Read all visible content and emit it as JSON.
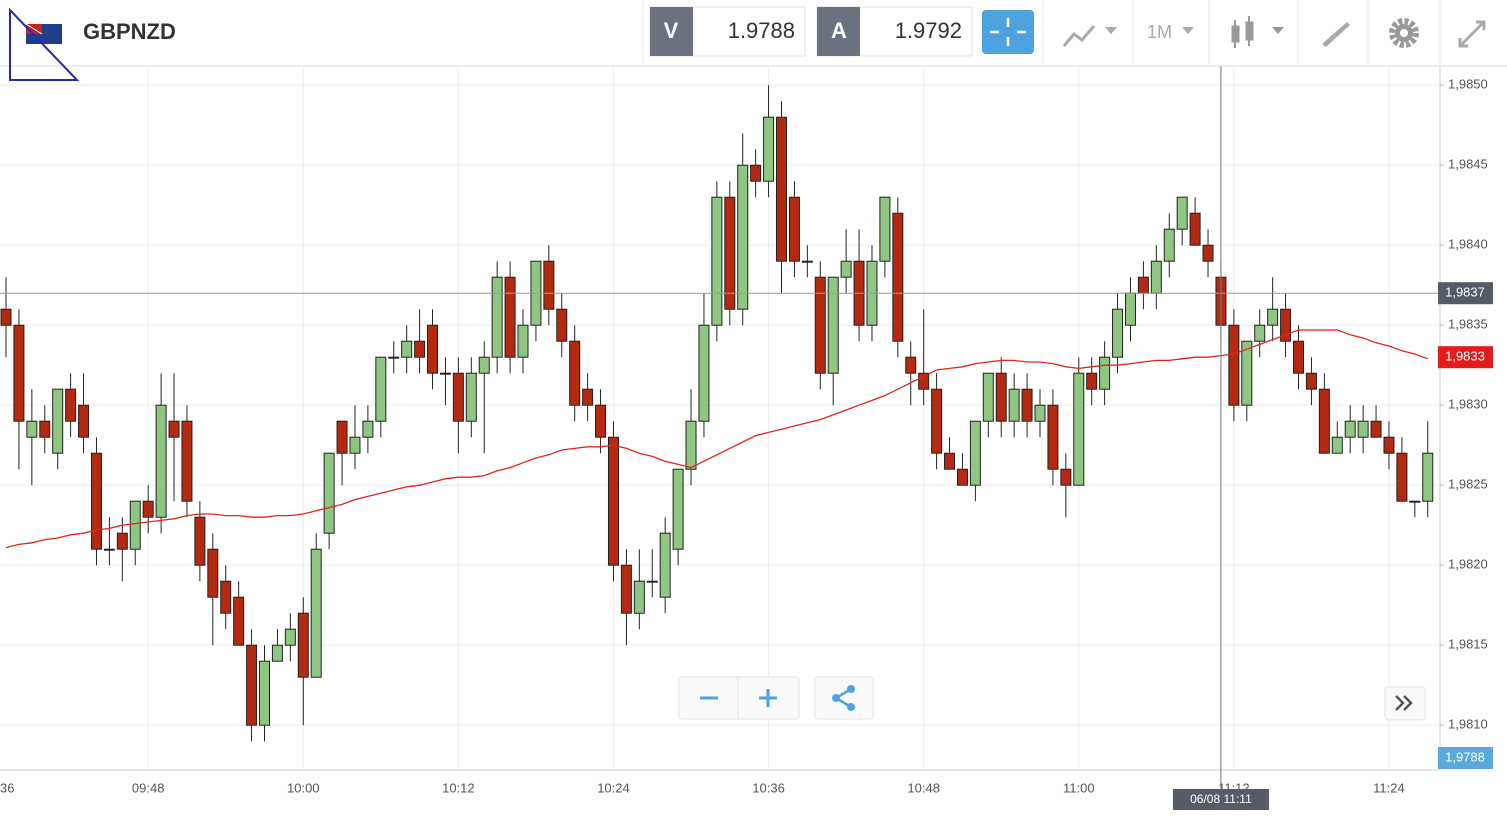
{
  "header": {
    "symbol": "GBPNZD",
    "sell": {
      "letter": "V",
      "price": "1.9788"
    },
    "buy": {
      "letter": "A",
      "price": "1.9792"
    },
    "timeframe": "1M"
  },
  "chart_data": {
    "type": "candlestick",
    "categories": [
      null,
      null,
      null,
      null,
      null,
      null,
      null,
      null,
      null,
      null,
      null,
      "09:48",
      null,
      null,
      null,
      null,
      null,
      null,
      null,
      null,
      null,
      null,
      null,
      "10:00",
      null,
      null,
      null,
      null,
      null,
      null,
      null,
      null,
      null,
      null,
      null,
      "10:12",
      null,
      null,
      null,
      null,
      null,
      null,
      null,
      null,
      null,
      null,
      null,
      "10:24",
      null,
      null,
      null,
      null,
      null,
      null,
      null,
      null,
      null,
      null,
      null,
      "10:36",
      null,
      null,
      null,
      null,
      null,
      null,
      null,
      null,
      null,
      null,
      null,
      "10:48",
      null,
      null,
      null,
      null,
      null,
      null,
      null,
      null,
      null,
      null,
      null,
      "11:00",
      null,
      null,
      null,
      null,
      null,
      null,
      null,
      null,
      null,
      null,
      null,
      "11:12",
      null,
      null,
      null,
      null,
      null,
      null,
      null,
      null,
      null,
      null,
      null,
      "11:24",
      null,
      null,
      null
    ],
    "x_cut_label": "36",
    "open": [
      1.9836,
      1.9835,
      1.9828,
      1.9829,
      1.9827,
      1.9831,
      1.983,
      1.9827,
      1.9821,
      1.9822,
      1.9821,
      1.9824,
      1.9823,
      1.9829,
      1.9829,
      1.9823,
      1.9821,
      1.9819,
      1.9818,
      1.9815,
      1.981,
      1.9814,
      1.9815,
      1.9817,
      1.9813,
      1.9822,
      1.9829,
      1.9827,
      1.9828,
      1.9829,
      1.9833,
      1.9833,
      1.9834,
      1.9835,
      1.9832,
      1.9832,
      1.9829,
      1.9832,
      1.9833,
      1.9838,
      1.9833,
      1.9835,
      1.9839,
      1.9836,
      1.9834,
      1.9831,
      1.983,
      1.9828,
      1.982,
      1.9817,
      1.9819,
      1.9818,
      1.9821,
      1.9826,
      1.9829,
      1.9835,
      1.9843,
      1.9836,
      1.9845,
      1.9844,
      1.9848,
      1.9843,
      1.9839,
      1.9838,
      1.9832,
      1.9838,
      1.9839,
      1.9835,
      1.9839,
      1.9842,
      1.9833,
      1.9832,
      1.9831,
      1.9827,
      1.9826,
      1.9825,
      1.9829,
      1.9832,
      1.9829,
      1.9831,
      1.9829,
      1.983,
      1.9826,
      1.9825,
      1.9832,
      1.9831,
      1.9833,
      1.9835,
      1.9838,
      1.9837,
      1.9839,
      1.9841,
      1.9842,
      1.984,
      1.9838,
      1.9835,
      1.983,
      1.9834,
      1.9835,
      1.9836,
      1.9834,
      1.9832,
      1.9831,
      1.9827,
      1.9828,
      1.9828,
      1.9829,
      1.9828,
      1.9827,
      1.9824,
      1.9824
    ],
    "high": [
      1.9838,
      1.9836,
      1.9831,
      1.983,
      1.9831,
      1.9832,
      1.9832,
      1.9828,
      1.9823,
      1.9823,
      1.9824,
      1.9825,
      1.9832,
      1.9832,
      1.983,
      1.9824,
      1.9822,
      1.982,
      1.9819,
      1.9816,
      1.9815,
      1.9816,
      1.9817,
      1.9818,
      1.9822,
      1.9827,
      1.9829,
      1.983,
      1.983,
      1.9833,
      1.9834,
      1.9835,
      1.9836,
      1.9836,
      1.9833,
      1.9833,
      1.9833,
      1.9834,
      1.9839,
      1.9839,
      1.9836,
      1.9839,
      1.984,
      1.9837,
      1.9835,
      1.9832,
      1.9831,
      1.9829,
      1.9821,
      1.9821,
      1.9821,
      1.9823,
      1.9826,
      1.9831,
      1.9837,
      1.9844,
      1.9844,
      1.9847,
      1.9846,
      1.985,
      1.9849,
      1.9844,
      1.984,
      1.9839,
      1.9838,
      1.9841,
      1.9841,
      1.984,
      1.9843,
      1.9843,
      1.9834,
      1.9836,
      1.9832,
      1.9828,
      1.9827,
      1.9829,
      1.9832,
      1.9833,
      1.9832,
      1.9832,
      1.9831,
      1.9831,
      1.9827,
      1.9833,
      1.9833,
      1.9834,
      1.9837,
      1.9838,
      1.9839,
      1.984,
      1.9842,
      1.9843,
      1.9843,
      1.9841,
      1.9839,
      1.9836,
      1.9834,
      1.9836,
      1.9838,
      1.9837,
      1.9835,
      1.9833,
      1.9832,
      1.9829,
      1.983,
      1.983,
      1.983,
      1.9829,
      1.9828,
      1.9824,
      1.9829
    ],
    "low": [
      1.9833,
      1.9826,
      1.9825,
      1.9827,
      1.9826,
      1.9828,
      1.9827,
      1.982,
      1.982,
      1.9819,
      1.982,
      1.9822,
      1.9822,
      1.9824,
      1.9823,
      1.9819,
      1.9815,
      1.9816,
      1.9815,
      1.9809,
      1.9809,
      1.9814,
      1.9814,
      1.981,
      1.9813,
      1.9821,
      1.9825,
      1.9826,
      1.9827,
      1.9828,
      1.9832,
      1.9832,
      1.9832,
      1.9831,
      1.983,
      1.9827,
      1.9828,
      1.9827,
      1.9832,
      1.9832,
      1.9832,
      1.9834,
      1.9835,
      1.9833,
      1.9829,
      1.9829,
      1.9827,
      1.9819,
      1.9815,
      1.9816,
      1.9818,
      1.9817,
      1.982,
      1.9825,
      1.9828,
      1.9834,
      1.9835,
      1.9835,
      1.9843,
      1.9843,
      1.9837,
      1.9838,
      1.9838,
      1.9831,
      1.983,
      1.9837,
      1.9834,
      1.9834,
      1.9838,
      1.9833,
      1.983,
      1.983,
      1.9826,
      1.9826,
      1.9825,
      1.9824,
      1.9828,
      1.9828,
      1.9828,
      1.9828,
      1.9828,
      1.9825,
      1.9823,
      1.9825,
      1.983,
      1.983,
      1.9832,
      1.9834,
      1.9836,
      1.9836,
      1.9838,
      1.984,
      1.984,
      1.9838,
      1.9834,
      1.9829,
      1.9829,
      1.9833,
      1.9834,
      1.9833,
      1.9831,
      1.983,
      1.9827,
      1.9827,
      1.9827,
      1.9827,
      1.9828,
      1.9826,
      1.9824,
      1.9823,
      1.9823
    ],
    "close": [
      1.9835,
      1.9829,
      1.9829,
      1.9828,
      1.9831,
      1.9829,
      1.9828,
      1.9821,
      1.9821,
      1.9821,
      1.9824,
      1.9823,
      1.983,
      1.9828,
      1.9824,
      1.982,
      1.9818,
      1.9817,
      1.9815,
      1.981,
      1.9814,
      1.9815,
      1.9816,
      1.9813,
      1.9821,
      1.9827,
      1.9827,
      1.9828,
      1.9829,
      1.9833,
      1.9833,
      1.9834,
      1.9833,
      1.9832,
      1.9832,
      1.9829,
      1.9832,
      1.9833,
      1.9838,
      1.9833,
      1.9835,
      1.9839,
      1.9836,
      1.9834,
      1.983,
      1.983,
      1.9828,
      1.982,
      1.9817,
      1.9819,
      1.9819,
      1.9822,
      1.9826,
      1.9829,
      1.9835,
      1.9843,
      1.9836,
      1.9845,
      1.9844,
      1.9848,
      1.9839,
      1.9839,
      1.9839,
      1.9832,
      1.9838,
      1.9839,
      1.9835,
      1.9839,
      1.9843,
      1.9834,
      1.9832,
      1.9831,
      1.9827,
      1.9826,
      1.9825,
      1.9829,
      1.9832,
      1.9829,
      1.9831,
      1.9829,
      1.983,
      1.9826,
      1.9825,
      1.9832,
      1.9831,
      1.9833,
      1.9836,
      1.9837,
      1.9837,
      1.9839,
      1.9841,
      1.9843,
      1.984,
      1.9839,
      1.9835,
      1.983,
      1.9834,
      1.9835,
      1.9836,
      1.9834,
      1.9832,
      1.9831,
      1.9827,
      1.9828,
      1.9829,
      1.9829,
      1.9828,
      1.9827,
      1.9824,
      1.9824,
      1.9827
    ],
    "ma": [
      1.98211,
      1.98213,
      1.98214,
      1.98216,
      1.98217,
      1.98219,
      1.9822,
      1.98222,
      1.98223,
      1.98225,
      1.98226,
      1.98227,
      1.98228,
      1.98229,
      1.98231,
      1.98232,
      1.98232,
      1.98231,
      1.98231,
      1.9823,
      1.9823,
      1.98231,
      1.98231,
      1.98232,
      1.98234,
      1.98236,
      1.98238,
      1.98241,
      1.98243,
      1.98245,
      1.98247,
      1.98249,
      1.9825,
      1.98252,
      1.98254,
      1.98255,
      1.98255,
      1.98256,
      1.98259,
      1.98261,
      1.98264,
      1.98267,
      1.98269,
      1.98272,
      1.98273,
      1.98274,
      1.98274,
      1.98275,
      1.98273,
      1.9827,
      1.98268,
      1.98265,
      1.98263,
      1.98261,
      1.98265,
      1.98269,
      1.98273,
      1.98277,
      1.98281,
      1.98283,
      1.98285,
      1.98287,
      1.98289,
      1.98291,
      1.98294,
      1.98297,
      1.983,
      1.98303,
      1.98306,
      1.9831,
      1.98314,
      1.98318,
      1.98322,
      1.98323,
      1.98324,
      1.98326,
      1.98327,
      1.98328,
      1.98328,
      1.98327,
      1.98327,
      1.98326,
      1.98324,
      1.98323,
      1.98324,
      1.98325,
      1.98325,
      1.98326,
      1.98327,
      1.98328,
      1.98328,
      1.98329,
      1.9833,
      1.9833,
      1.98331,
      1.98332,
      1.98335,
      1.98338,
      1.98341,
      1.98344,
      1.98347,
      1.98347,
      1.98347,
      1.98347,
      1.98344,
      1.98342,
      1.98339,
      1.98337,
      1.98334,
      1.98332,
      1.98329
    ],
    "up_color": "#8fc782",
    "down_color": "#b42a10",
    "ma_color": "#e0261c",
    "ylim": [
      1.98072,
      1.98512
    ],
    "yticks": [
      {
        "value": 1.981,
        "label": "1,9810"
      },
      {
        "value": 1.9815,
        "label": "1,9815"
      },
      {
        "value": 1.982,
        "label": "1,9820"
      },
      {
        "value": 1.9825,
        "label": "1,9825"
      },
      {
        "value": 1.983,
        "label": "1,9830"
      },
      {
        "value": 1.9835,
        "label": "1,9835"
      },
      {
        "value": 1.984,
        "label": "1,9840"
      },
      {
        "value": 1.9845,
        "label": "1,9845"
      },
      {
        "value": 1.985,
        "label": "1,9850"
      }
    ],
    "grid": true,
    "crosshair_price": {
      "value": 1.9837,
      "label": "1,9837"
    },
    "current_price": {
      "value": 1.9833,
      "label": "1,9833"
    },
    "bid_tag": "1,9788",
    "crosshair_time": "06/08 11:11"
  }
}
